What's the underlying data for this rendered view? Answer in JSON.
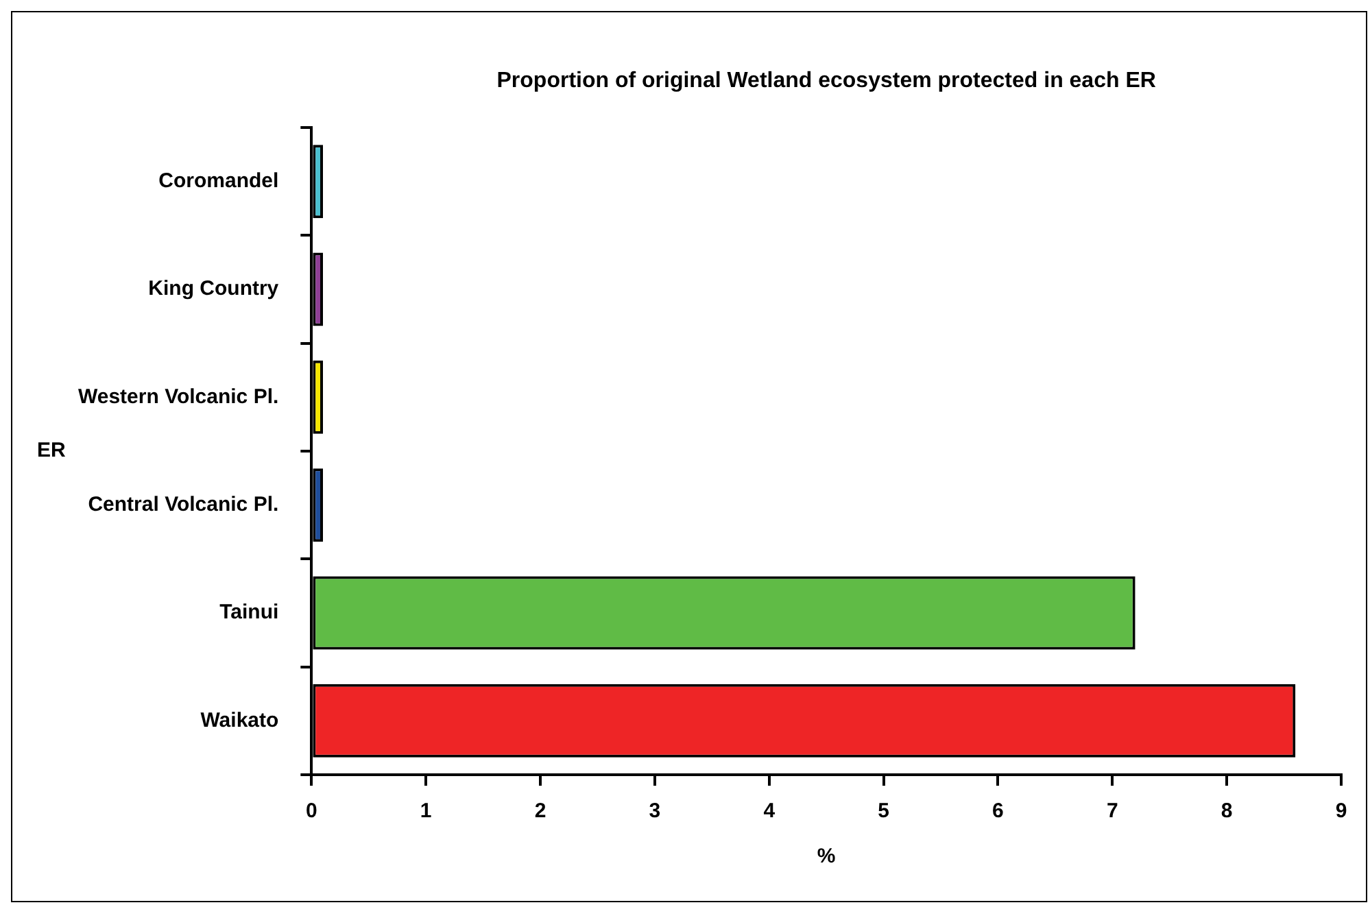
{
  "chart_data": {
    "type": "bar",
    "orientation": "horizontal",
    "title": "Proportion of original Wetland ecosystem protected in each ER",
    "xlabel": "%",
    "ylabel": "ER",
    "categories": [
      "Coromandel",
      "King Country",
      "Western Volcanic Pl.",
      "Central Volcanic Pl.",
      "Tainui",
      "Waikato"
    ],
    "values": [
      0.1,
      0.1,
      0.1,
      0.1,
      7.2,
      8.6
    ],
    "colors": [
      "#4bbfcf",
      "#8e3f96",
      "#f5e600",
      "#1f4e9c",
      "#60bb46",
      "#ee2526"
    ],
    "xlim": [
      0,
      9
    ],
    "xticks": [
      0,
      1,
      2,
      3,
      4,
      5,
      6,
      7,
      8,
      9
    ],
    "grid": false,
    "legend": false
  }
}
